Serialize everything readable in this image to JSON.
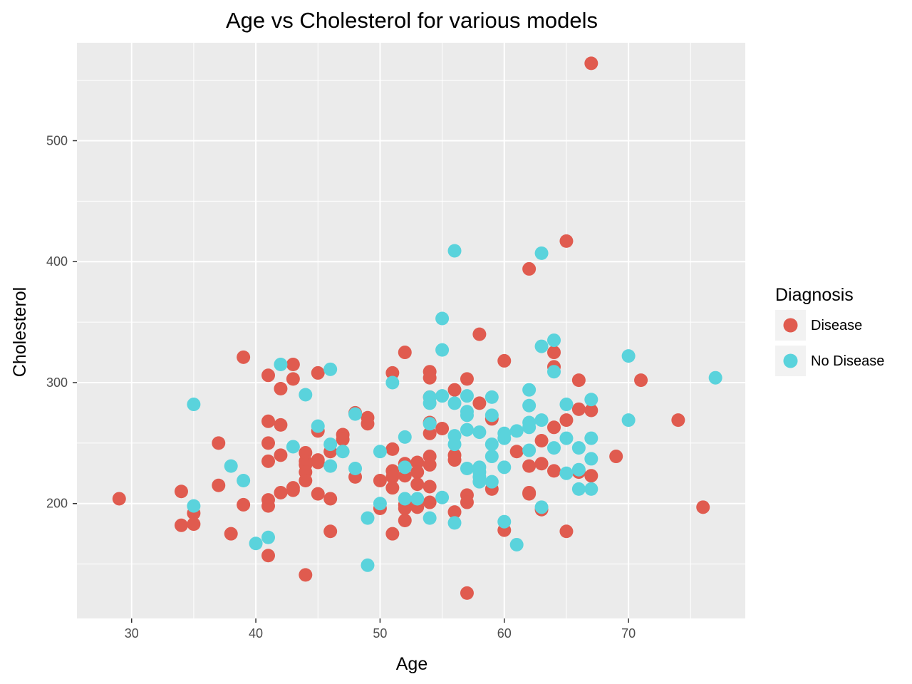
{
  "chart_data": {
    "type": "scatter",
    "title": "Age vs Cholesterol for various models",
    "xlabel": "Age",
    "ylabel": "Cholesterol",
    "xlim": [
      25.6,
      79.4
    ],
    "ylim": [
      105,
      581
    ],
    "x_ticks": [
      30,
      40,
      50,
      60,
      70
    ],
    "y_ticks": [
      200,
      300,
      400,
      500
    ],
    "grid": true,
    "legend": {
      "title": "Diagnosis",
      "placement": "right"
    },
    "series": [
      {
        "name": "Disease",
        "color": "#e05b4f",
        "points": [
          [
            29,
            204
          ],
          [
            34,
            210
          ],
          [
            34,
            182
          ],
          [
            35,
            192
          ],
          [
            35,
            183
          ],
          [
            37,
            250
          ],
          [
            37,
            215
          ],
          [
            38,
            175
          ],
          [
            39,
            321
          ],
          [
            39,
            199
          ],
          [
            41,
            306
          ],
          [
            41,
            268
          ],
          [
            41,
            250
          ],
          [
            41,
            235
          ],
          [
            41,
            203
          ],
          [
            41,
            198
          ],
          [
            41,
            157
          ],
          [
            42,
            295
          ],
          [
            42,
            265
          ],
          [
            42,
            240
          ],
          [
            42,
            209
          ],
          [
            43,
            315
          ],
          [
            43,
            303
          ],
          [
            43,
            213
          ],
          [
            43,
            211
          ],
          [
            44,
            242
          ],
          [
            44,
            235
          ],
          [
            44,
            232
          ],
          [
            44,
            226
          ],
          [
            44,
            219
          ],
          [
            44,
            141
          ],
          [
            45,
            308
          ],
          [
            45,
            260
          ],
          [
            45,
            236
          ],
          [
            45,
            234
          ],
          [
            45,
            208
          ],
          [
            46,
            243
          ],
          [
            46,
            204
          ],
          [
            46,
            177
          ],
          [
            47,
            257
          ],
          [
            47,
            253
          ],
          [
            48,
            275
          ],
          [
            48,
            222
          ],
          [
            49,
            271
          ],
          [
            49,
            266
          ],
          [
            50,
            219
          ],
          [
            50,
            196
          ],
          [
            51,
            308
          ],
          [
            51,
            245
          ],
          [
            51,
            227
          ],
          [
            51,
            222
          ],
          [
            51,
            213
          ],
          [
            51,
            175
          ],
          [
            52,
            325
          ],
          [
            52,
            233
          ],
          [
            52,
            230
          ],
          [
            52,
            223
          ],
          [
            52,
            199
          ],
          [
            52,
            196
          ],
          [
            52,
            186
          ],
          [
            53,
            234
          ],
          [
            53,
            226
          ],
          [
            53,
            216
          ],
          [
            53,
            203
          ],
          [
            53,
            197
          ],
          [
            54,
            309
          ],
          [
            54,
            304
          ],
          [
            54,
            288
          ],
          [
            54,
            267
          ],
          [
            54,
            258
          ],
          [
            54,
            239
          ],
          [
            54,
            232
          ],
          [
            54,
            214
          ],
          [
            54,
            201
          ],
          [
            55,
            262
          ],
          [
            56,
            294
          ],
          [
            56,
            240
          ],
          [
            56,
            236
          ],
          [
            56,
            193
          ],
          [
            57,
            303
          ],
          [
            57,
            207
          ],
          [
            57,
            201
          ],
          [
            57,
            126
          ],
          [
            58,
            340
          ],
          [
            58,
            283
          ],
          [
            59,
            270
          ],
          [
            59,
            212
          ],
          [
            60,
            318
          ],
          [
            60,
            178
          ],
          [
            61,
            243
          ],
          [
            62,
            394
          ],
          [
            62,
            231
          ],
          [
            62,
            209
          ],
          [
            62,
            208
          ],
          [
            63,
            252
          ],
          [
            63,
            233
          ],
          [
            63,
            195
          ],
          [
            64,
            325
          ],
          [
            64,
            313
          ],
          [
            64,
            263
          ],
          [
            64,
            227
          ],
          [
            65,
            417
          ],
          [
            65,
            269
          ],
          [
            65,
            177
          ],
          [
            66,
            302
          ],
          [
            66,
            278
          ],
          [
            66,
            226
          ],
          [
            67,
            564
          ],
          [
            67,
            277
          ],
          [
            67,
            223
          ],
          [
            69,
            239
          ],
          [
            71,
            302
          ],
          [
            74,
            269
          ],
          [
            76,
            197
          ]
        ]
      },
      {
        "name": "No Disease",
        "color": "#5ad3dc",
        "points": [
          [
            35,
            282
          ],
          [
            35,
            198
          ],
          [
            38,
            231
          ],
          [
            39,
            219
          ],
          [
            40,
            167
          ],
          [
            41,
            172
          ],
          [
            42,
            315
          ],
          [
            43,
            247
          ],
          [
            44,
            290
          ],
          [
            45,
            264
          ],
          [
            46,
            311
          ],
          [
            46,
            249
          ],
          [
            46,
            231
          ],
          [
            47,
            243
          ],
          [
            48,
            274
          ],
          [
            48,
            229
          ],
          [
            49,
            188
          ],
          [
            49,
            149
          ],
          [
            50,
            243
          ],
          [
            50,
            200
          ],
          [
            51,
            300
          ],
          [
            52,
            255
          ],
          [
            52,
            230
          ],
          [
            52,
            204
          ],
          [
            53,
            204
          ],
          [
            54,
            288
          ],
          [
            54,
            283
          ],
          [
            54,
            266
          ],
          [
            54,
            188
          ],
          [
            55,
            353
          ],
          [
            55,
            327
          ],
          [
            55,
            289
          ],
          [
            55,
            205
          ],
          [
            56,
            409
          ],
          [
            56,
            283
          ],
          [
            56,
            256
          ],
          [
            56,
            249
          ],
          [
            56,
            184
          ],
          [
            57,
            289
          ],
          [
            57,
            276
          ],
          [
            57,
            273
          ],
          [
            57,
            261
          ],
          [
            57,
            229
          ],
          [
            58,
            259
          ],
          [
            58,
            230
          ],
          [
            58,
            226
          ],
          [
            58,
            222
          ],
          [
            58,
            218
          ],
          [
            59,
            288
          ],
          [
            59,
            273
          ],
          [
            59,
            249
          ],
          [
            59,
            239
          ],
          [
            59,
            218
          ],
          [
            60,
            258
          ],
          [
            60,
            254
          ],
          [
            60,
            230
          ],
          [
            60,
            185
          ],
          [
            61,
            260
          ],
          [
            61,
            166
          ],
          [
            62,
            294
          ],
          [
            62,
            281
          ],
          [
            62,
            267
          ],
          [
            62,
            263
          ],
          [
            62,
            244
          ],
          [
            63,
            407
          ],
          [
            63,
            330
          ],
          [
            63,
            269
          ],
          [
            63,
            197
          ],
          [
            64,
            335
          ],
          [
            64,
            309
          ],
          [
            64,
            246
          ],
          [
            65,
            282
          ],
          [
            65,
            254
          ],
          [
            65,
            225
          ],
          [
            66,
            246
          ],
          [
            66,
            228
          ],
          [
            66,
            212
          ],
          [
            67,
            286
          ],
          [
            67,
            254
          ],
          [
            67,
            237
          ],
          [
            67,
            212
          ],
          [
            70,
            322
          ],
          [
            70,
            269
          ],
          [
            77,
            304
          ]
        ]
      }
    ]
  }
}
